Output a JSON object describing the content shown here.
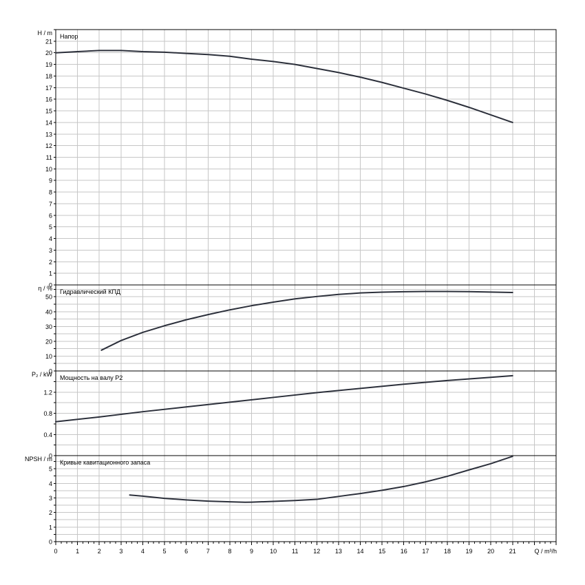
{
  "colors": {
    "curve": "#2b2f3a",
    "grid": "#c6c6c6",
    "frame": "#000000",
    "background": "#ffffff"
  },
  "x_axis": {
    "label": "Q / m³/h",
    "ticks": [
      "0",
      "1",
      "2",
      "3",
      "4",
      "5",
      "6",
      "7",
      "8",
      "9",
      "10",
      "11",
      "12",
      "13",
      "14",
      "15",
      "16",
      "17",
      "18",
      "19",
      "20",
      "21"
    ],
    "range": [
      0,
      23
    ],
    "minor_step": 0.25
  },
  "chart_data": [
    {
      "type": "line",
      "title": "Напор",
      "ylabel": "H / m",
      "ylim": [
        0,
        22
      ],
      "yticks": [
        0,
        1,
        2,
        3,
        4,
        5,
        6,
        7,
        8,
        9,
        10,
        11,
        12,
        13,
        14,
        15,
        16,
        17,
        18,
        19,
        20,
        21
      ],
      "ygrid_step": 1,
      "grid": true,
      "series": [
        {
          "x": [
            0,
            1,
            2,
            3,
            4,
            5,
            6,
            7,
            8,
            9,
            10,
            11,
            12,
            13,
            14,
            15,
            16,
            17,
            18,
            19,
            20,
            21
          ],
          "y": [
            20.0,
            20.1,
            20.2,
            20.2,
            20.1,
            20.05,
            19.95,
            19.85,
            19.7,
            19.45,
            19.25,
            19.0,
            18.65,
            18.3,
            17.9,
            17.45,
            16.95,
            16.45,
            15.9,
            15.3,
            14.65,
            14.0
          ]
        }
      ]
    },
    {
      "type": "line",
      "title": "Гидравлический КПД",
      "ylabel": "η / %",
      "ylim": [
        0,
        58
      ],
      "yticks": [
        0,
        10,
        20,
        30,
        40,
        50
      ],
      "ygrid_step": 5,
      "grid": true,
      "series": [
        {
          "x": [
            2.1,
            3,
            4,
            5,
            6,
            7,
            8,
            9,
            10,
            11,
            12,
            13,
            14,
            15,
            16,
            17,
            18,
            19,
            20,
            21
          ],
          "y": [
            14,
            20.5,
            26,
            30.5,
            34.5,
            38,
            41.2,
            44,
            46.4,
            48.6,
            50.2,
            51.6,
            52.6,
            53.1,
            53.4,
            53.6,
            53.6,
            53.5,
            53.2,
            52.9
          ]
        }
      ]
    },
    {
      "type": "line",
      "title": "Мощность на валу P2",
      "ylabel": "P₂ / kW",
      "ylim": [
        0,
        1.6
      ],
      "yticks": [
        0,
        0.4,
        0.8,
        1.2
      ],
      "yticklabels": [
        "0",
        "0.4",
        "0.8",
        "1.2"
      ],
      "ygrid_step": 0.2,
      "grid": true,
      "series": [
        {
          "x": [
            0,
            2,
            4,
            6,
            8,
            10,
            12,
            14,
            16,
            18,
            20,
            21
          ],
          "y": [
            0.64,
            0.73,
            0.83,
            0.92,
            1.01,
            1.1,
            1.19,
            1.27,
            1.35,
            1.42,
            1.48,
            1.51
          ]
        }
      ]
    },
    {
      "type": "line",
      "title": "Кривые кавитационного запаса",
      "ylabel": "NPSH / m",
      "ylim": [
        0,
        5.9
      ],
      "yticks": [
        0,
        1,
        2,
        3,
        4,
        5
      ],
      "ygrid_step": 0.5,
      "grid": true,
      "series": [
        {
          "x": [
            3.4,
            4,
            5,
            6,
            7,
            8,
            8.7,
            9,
            10,
            11,
            12,
            13,
            14,
            15,
            16,
            17,
            18,
            19,
            20,
            21
          ],
          "y": [
            3.2,
            3.12,
            2.97,
            2.86,
            2.78,
            2.73,
            2.7,
            2.71,
            2.76,
            2.82,
            2.9,
            3.1,
            3.3,
            3.52,
            3.78,
            4.1,
            4.48,
            4.92,
            5.35,
            5.85
          ]
        }
      ]
    }
  ]
}
